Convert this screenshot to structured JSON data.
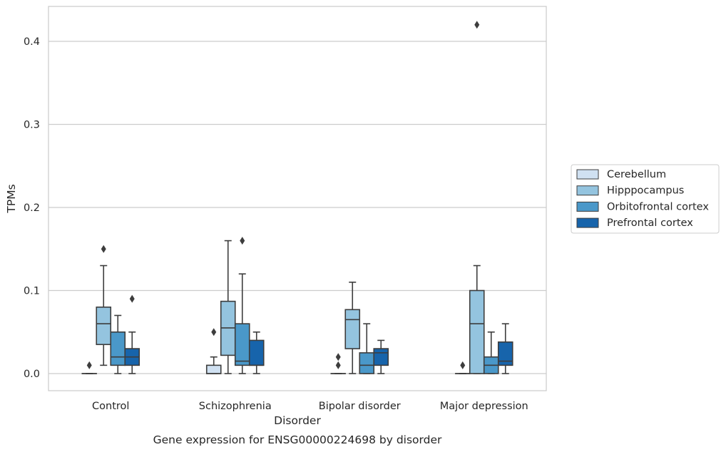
{
  "caption": "Gene expression for ENSG00000224698 by disorder",
  "chart_data": {
    "type": "box",
    "title": "",
    "xlabel": "Disorder",
    "ylabel": "TPMs",
    "ylim": [
      -0.02,
      0.44
    ],
    "yticks": [
      0.0,
      0.1,
      0.2,
      0.3,
      0.4
    ],
    "ytick_labels": [
      "0.0",
      "0.1",
      "0.2",
      "0.3",
      "0.4"
    ],
    "grid": "horizontal",
    "legend_position": "right",
    "categories": [
      "Control",
      "Schizophrenia",
      "Bipolar disorder",
      "Major depression"
    ],
    "series": [
      {
        "name": "Cerebellum",
        "color": "#d0e1f2",
        "boxes": [
          {
            "whisker_low": 0.0,
            "q1": 0.0,
            "median": 0.0,
            "q3": 0.0,
            "whisker_high": 0.0,
            "outliers": [
              0.01
            ]
          },
          {
            "whisker_low": 0.0,
            "q1": 0.0,
            "median": 0.0,
            "q3": 0.01,
            "whisker_high": 0.02,
            "outliers": [
              0.05
            ]
          },
          {
            "whisker_low": 0.0,
            "q1": 0.0,
            "median": 0.0,
            "q3": 0.0,
            "whisker_high": 0.0,
            "outliers": [
              0.01,
              0.02
            ]
          },
          {
            "whisker_low": 0.0,
            "q1": 0.0,
            "median": 0.0,
            "q3": 0.0,
            "whisker_high": 0.0,
            "outliers": [
              0.01
            ]
          }
        ]
      },
      {
        "name": "Hipppocampus",
        "color": "#94c4df",
        "boxes": [
          {
            "whisker_low": 0.01,
            "q1": 0.035,
            "median": 0.06,
            "q3": 0.08,
            "whisker_high": 0.13,
            "outliers": [
              0.15
            ]
          },
          {
            "whisker_low": 0.0,
            "q1": 0.022,
            "median": 0.055,
            "q3": 0.087,
            "whisker_high": 0.16,
            "outliers": []
          },
          {
            "whisker_low": 0.0,
            "q1": 0.03,
            "median": 0.065,
            "q3": 0.077,
            "whisker_high": 0.11,
            "outliers": []
          },
          {
            "whisker_low": 0.0,
            "q1": 0.0,
            "median": 0.06,
            "q3": 0.1,
            "whisker_high": 0.13,
            "outliers": [
              0.42
            ]
          }
        ]
      },
      {
        "name": "Orbitofrontal cortex",
        "color": "#4a98c9",
        "boxes": [
          {
            "whisker_low": 0.0,
            "q1": 0.01,
            "median": 0.02,
            "q3": 0.05,
            "whisker_high": 0.07,
            "outliers": []
          },
          {
            "whisker_low": 0.0,
            "q1": 0.01,
            "median": 0.015,
            "q3": 0.06,
            "whisker_high": 0.12,
            "outliers": [
              0.16
            ]
          },
          {
            "whisker_low": 0.0,
            "q1": 0.0,
            "median": 0.01,
            "q3": 0.025,
            "whisker_high": 0.06,
            "outliers": []
          },
          {
            "whisker_low": 0.0,
            "q1": 0.0,
            "median": 0.01,
            "q3": 0.02,
            "whisker_high": 0.05,
            "outliers": []
          }
        ]
      },
      {
        "name": "Prefrontal cortex",
        "color": "#1764ab",
        "boxes": [
          {
            "whisker_low": 0.0,
            "q1": 0.01,
            "median": 0.02,
            "q3": 0.03,
            "whisker_high": 0.05,
            "outliers": [
              0.09
            ]
          },
          {
            "whisker_low": 0.0,
            "q1": 0.01,
            "median": 0.01,
            "q3": 0.04,
            "whisker_high": 0.05,
            "outliers": []
          },
          {
            "whisker_low": 0.0,
            "q1": 0.01,
            "median": 0.025,
            "q3": 0.03,
            "whisker_high": 0.04,
            "outliers": []
          },
          {
            "whisker_low": 0.0,
            "q1": 0.01,
            "median": 0.015,
            "q3": 0.038,
            "whisker_high": 0.06,
            "outliers": []
          }
        ]
      }
    ]
  }
}
